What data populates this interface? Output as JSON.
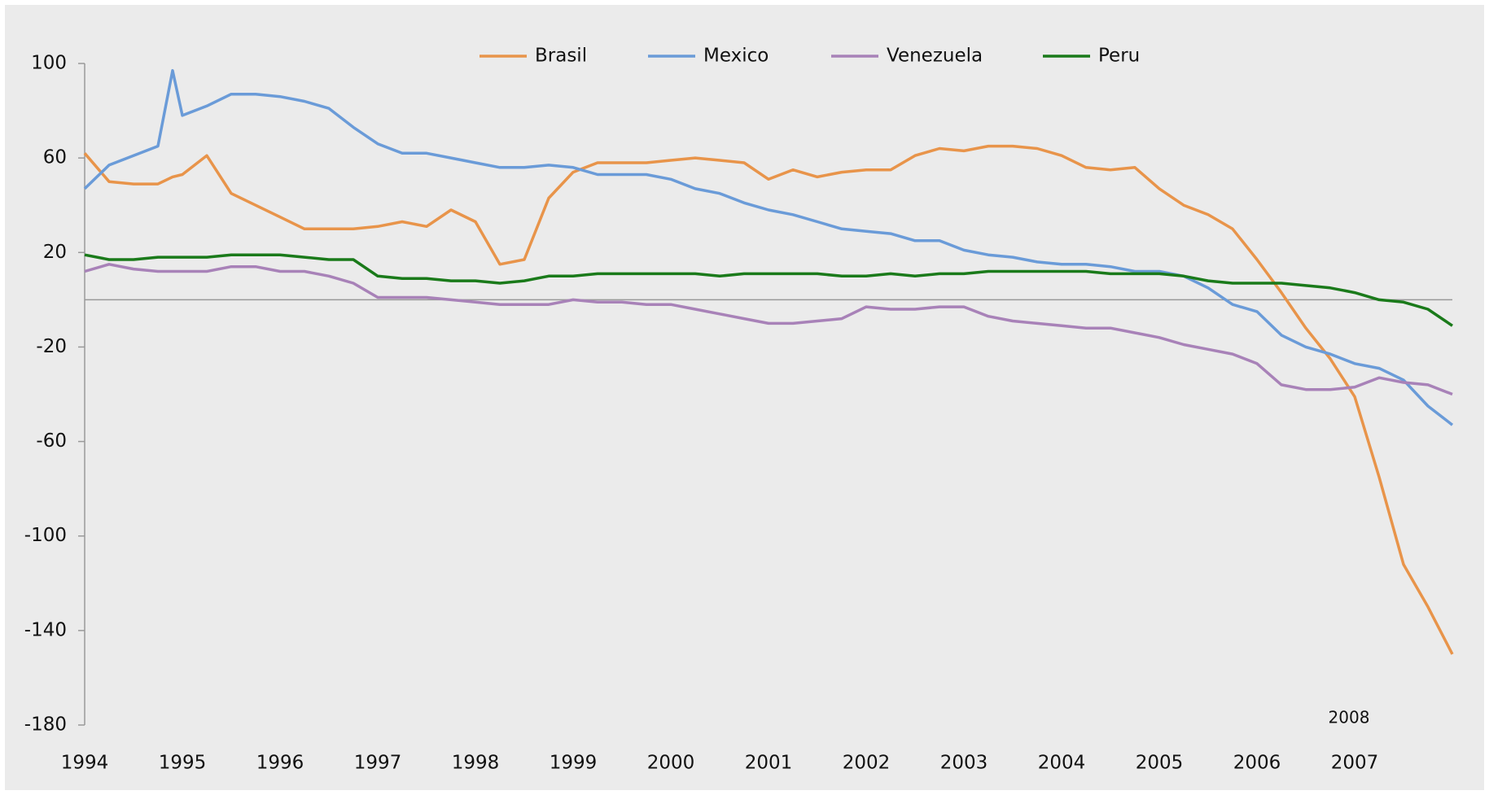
{
  "chart_data": {
    "type": "line",
    "annotation": "2008",
    "x": [
      1994,
      1994.25,
      1994.5,
      1994.75,
      1994.9,
      1995,
      1995.25,
      1995.5,
      1995.75,
      1996,
      1996.25,
      1996.5,
      1996.75,
      1997,
      1997.25,
      1997.5,
      1997.75,
      1998,
      1998.25,
      1998.5,
      1998.75,
      1999,
      1999.25,
      1999.5,
      1999.75,
      2000,
      2000.25,
      2000.5,
      2000.75,
      2001,
      2001.25,
      2001.5,
      2001.75,
      2002,
      2002.25,
      2002.5,
      2002.75,
      2003,
      2003.25,
      2003.5,
      2003.75,
      2004,
      2004.25,
      2004.5,
      2004.75,
      2005,
      2005.25,
      2005.5,
      2005.75,
      2006,
      2006.25,
      2006.5,
      2006.75,
      2007,
      2007.25,
      2007.5,
      2007.75,
      2008
    ],
    "series": [
      {
        "name": "Brasil",
        "color": "#e8944a",
        "values": [
          62,
          50,
          49,
          49,
          52,
          53,
          61,
          45,
          40,
          35,
          30,
          30,
          30,
          31,
          33,
          31,
          38,
          33,
          15,
          17,
          43,
          54,
          58,
          58,
          58,
          59,
          60,
          59,
          58,
          51,
          55,
          52,
          54,
          55,
          55,
          61,
          64,
          63,
          65,
          65,
          64,
          61,
          56,
          55,
          56,
          47,
          40,
          36,
          30,
          17,
          3,
          -12,
          -25,
          -41,
          -75,
          -112,
          -130,
          -150
        ]
      },
      {
        "name": "Mexico",
        "color": "#6a9bd8",
        "values": [
          47,
          57,
          61,
          65,
          97,
          78,
          82,
          87,
          87,
          86,
          84,
          81,
          73,
          66,
          62,
          62,
          60,
          58,
          56,
          56,
          57,
          56,
          53,
          53,
          53,
          51,
          47,
          45,
          41,
          38,
          36,
          33,
          30,
          29,
          28,
          25,
          25,
          21,
          19,
          18,
          16,
          15,
          15,
          14,
          12,
          12,
          10,
          5,
          -2,
          -5,
          -15,
          -20,
          -23,
          -27,
          -29,
          -34,
          -45,
          -53
        ]
      },
      {
        "name": "Venezuela",
        "color": "#a882b8",
        "values": [
          12,
          15,
          13,
          12,
          12,
          12,
          12,
          14,
          14,
          12,
          12,
          10,
          7,
          1,
          1,
          1,
          0,
          -1,
          -2,
          -2,
          -2,
          0,
          -1,
          -1,
          -2,
          -2,
          -4,
          -6,
          -8,
          -10,
          -10,
          -9,
          -8,
          -3,
          -4,
          -4,
          -3,
          -3,
          -7,
          -9,
          -10,
          -11,
          -12,
          -12,
          -14,
          -16,
          -19,
          -21,
          -23,
          -27,
          -36,
          -38,
          -38,
          -37,
          -33,
          -35,
          -36,
          -40
        ]
      },
      {
        "name": "Peru",
        "color": "#1a7a1a",
        "values": [
          19,
          17,
          17,
          18,
          18,
          18,
          18,
          19,
          19,
          19,
          18,
          17,
          17,
          10,
          9,
          9,
          8,
          8,
          7,
          8,
          10,
          10,
          11,
          11,
          11,
          11,
          11,
          10,
          11,
          11,
          11,
          11,
          10,
          10,
          11,
          10,
          11,
          11,
          12,
          12,
          12,
          12,
          12,
          11,
          11,
          11,
          10,
          8,
          7,
          7,
          7,
          6,
          5,
          3,
          0,
          -1,
          -4,
          -11
        ]
      }
    ],
    "xlim": [
      1994,
      2008
    ],
    "xticks": [
      1994,
      1995,
      1996,
      1997,
      1998,
      1999,
      2000,
      2001,
      2002,
      2003,
      2004,
      2005,
      2006,
      2007
    ],
    "ylim": [
      -180,
      100
    ],
    "yticks": [
      100,
      60,
      20,
      -20,
      -60,
      -100,
      -140,
      -180
    ],
    "legend": "top"
  }
}
